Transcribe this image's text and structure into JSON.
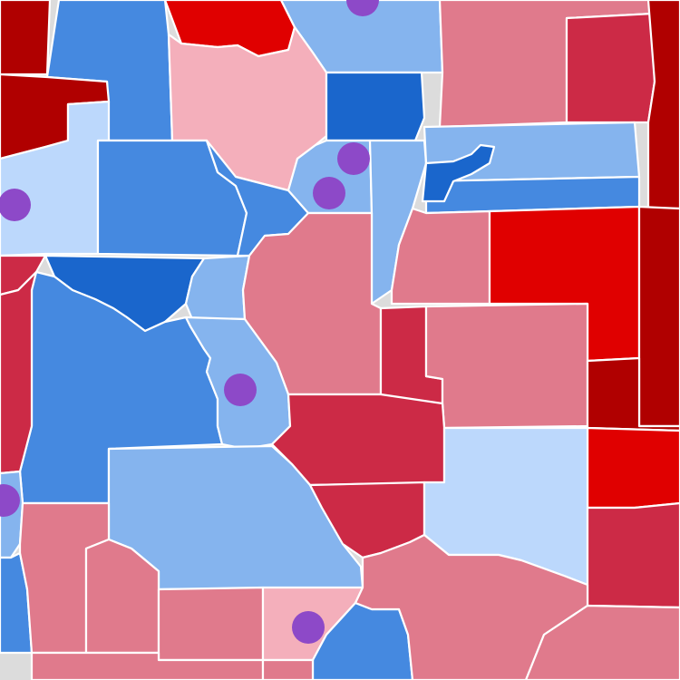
{
  "colors": {
    "r1": "#b00000",
    "r2": "#e00000",
    "r3": "#cc2a46",
    "r4": "#e07a8c",
    "r5": "#f4afbb",
    "b1": "#1a66cc",
    "b2": "#4589e0",
    "b3": "#85b4ee",
    "b4": "#bcd8fc",
    "marker": "#8d49c8",
    "border": "#ffffff"
  },
  "counties": [
    {
      "id": "nw-corner",
      "fill": "r1"
    },
    {
      "id": "nw-north-blue",
      "fill": "b2"
    },
    {
      "id": "north-red",
      "fill": "r2"
    },
    {
      "id": "north-mid-lightblue",
      "fill": "b3"
    },
    {
      "id": "north-east-pink",
      "fill": "r4"
    },
    {
      "id": "northeast-red",
      "fill": "r3"
    },
    {
      "id": "west-dark-red",
      "fill": "r1"
    },
    {
      "id": "north-pink-large",
      "fill": "r5"
    },
    {
      "id": "north-dark-blue",
      "fill": "b1"
    },
    {
      "id": "far-east-red-top",
      "fill": "r1"
    },
    {
      "id": "west-light-blue",
      "fill": "b4"
    },
    {
      "id": "central-blue-large",
      "fill": "b2"
    },
    {
      "id": "central-blue-right",
      "fill": "b2"
    },
    {
      "id": "metro-light-blue",
      "fill": "b3"
    },
    {
      "id": "narrow-light-blue",
      "fill": "b3"
    },
    {
      "id": "east-blue-strip-top",
      "fill": "b3"
    },
    {
      "id": "east-blue-strip-bottom",
      "fill": "b2"
    },
    {
      "id": "east-dark-blue-small",
      "fill": "b1"
    },
    {
      "id": "west-red-edge",
      "fill": "r3"
    },
    {
      "id": "dark-blue-band",
      "fill": "b1"
    },
    {
      "id": "small-light-blue",
      "fill": "b3"
    },
    {
      "id": "center-pink-large",
      "fill": "r4"
    },
    {
      "id": "pink-mid-east",
      "fill": "r4"
    },
    {
      "id": "east-red",
      "fill": "r2"
    },
    {
      "id": "far-east-red-long",
      "fill": "r1"
    },
    {
      "id": "west-blue-large",
      "fill": "b2"
    },
    {
      "id": "river-light-blue",
      "fill": "b3"
    },
    {
      "id": "small-red-rect",
      "fill": "r3"
    },
    {
      "id": "pink-se",
      "fill": "r4"
    },
    {
      "id": "red-center-south",
      "fill": "r3"
    },
    {
      "id": "far-east-dark-red",
      "fill": "r1"
    },
    {
      "id": "southeast-red",
      "fill": "r2"
    },
    {
      "id": "south-light-blue-large",
      "fill": "b3"
    },
    {
      "id": "south-red-small",
      "fill": "r3"
    },
    {
      "id": "south-palest-blue",
      "fill": "b4"
    },
    {
      "id": "southeast-corner-red",
      "fill": "r3"
    },
    {
      "id": "west-edge-red",
      "fill": "r3"
    },
    {
      "id": "sw-edge-light-blue",
      "fill": "b3"
    },
    {
      "id": "sw-edge-blue",
      "fill": "b2"
    },
    {
      "id": "sw-pink-1",
      "fill": "r4"
    },
    {
      "id": "sw-pink-2",
      "fill": "r4"
    },
    {
      "id": "sw-pink-3",
      "fill": "r4"
    },
    {
      "id": "south-pale-pink",
      "fill": "r5"
    },
    {
      "id": "south-blue-bottom",
      "fill": "b2"
    },
    {
      "id": "south-pink-right",
      "fill": "r4"
    },
    {
      "id": "bottom-strip-left",
      "fill": "r4"
    },
    {
      "id": "bottom-strip-left-2",
      "fill": "r4"
    },
    {
      "id": "southeast-pink-bottom",
      "fill": "r4"
    }
  ],
  "markers": [
    {
      "id": "marker-top"
    },
    {
      "id": "marker-west"
    },
    {
      "id": "marker-metro-1"
    },
    {
      "id": "marker-metro-2"
    },
    {
      "id": "marker-center"
    },
    {
      "id": "marker-sw-edge"
    },
    {
      "id": "marker-south"
    }
  ]
}
